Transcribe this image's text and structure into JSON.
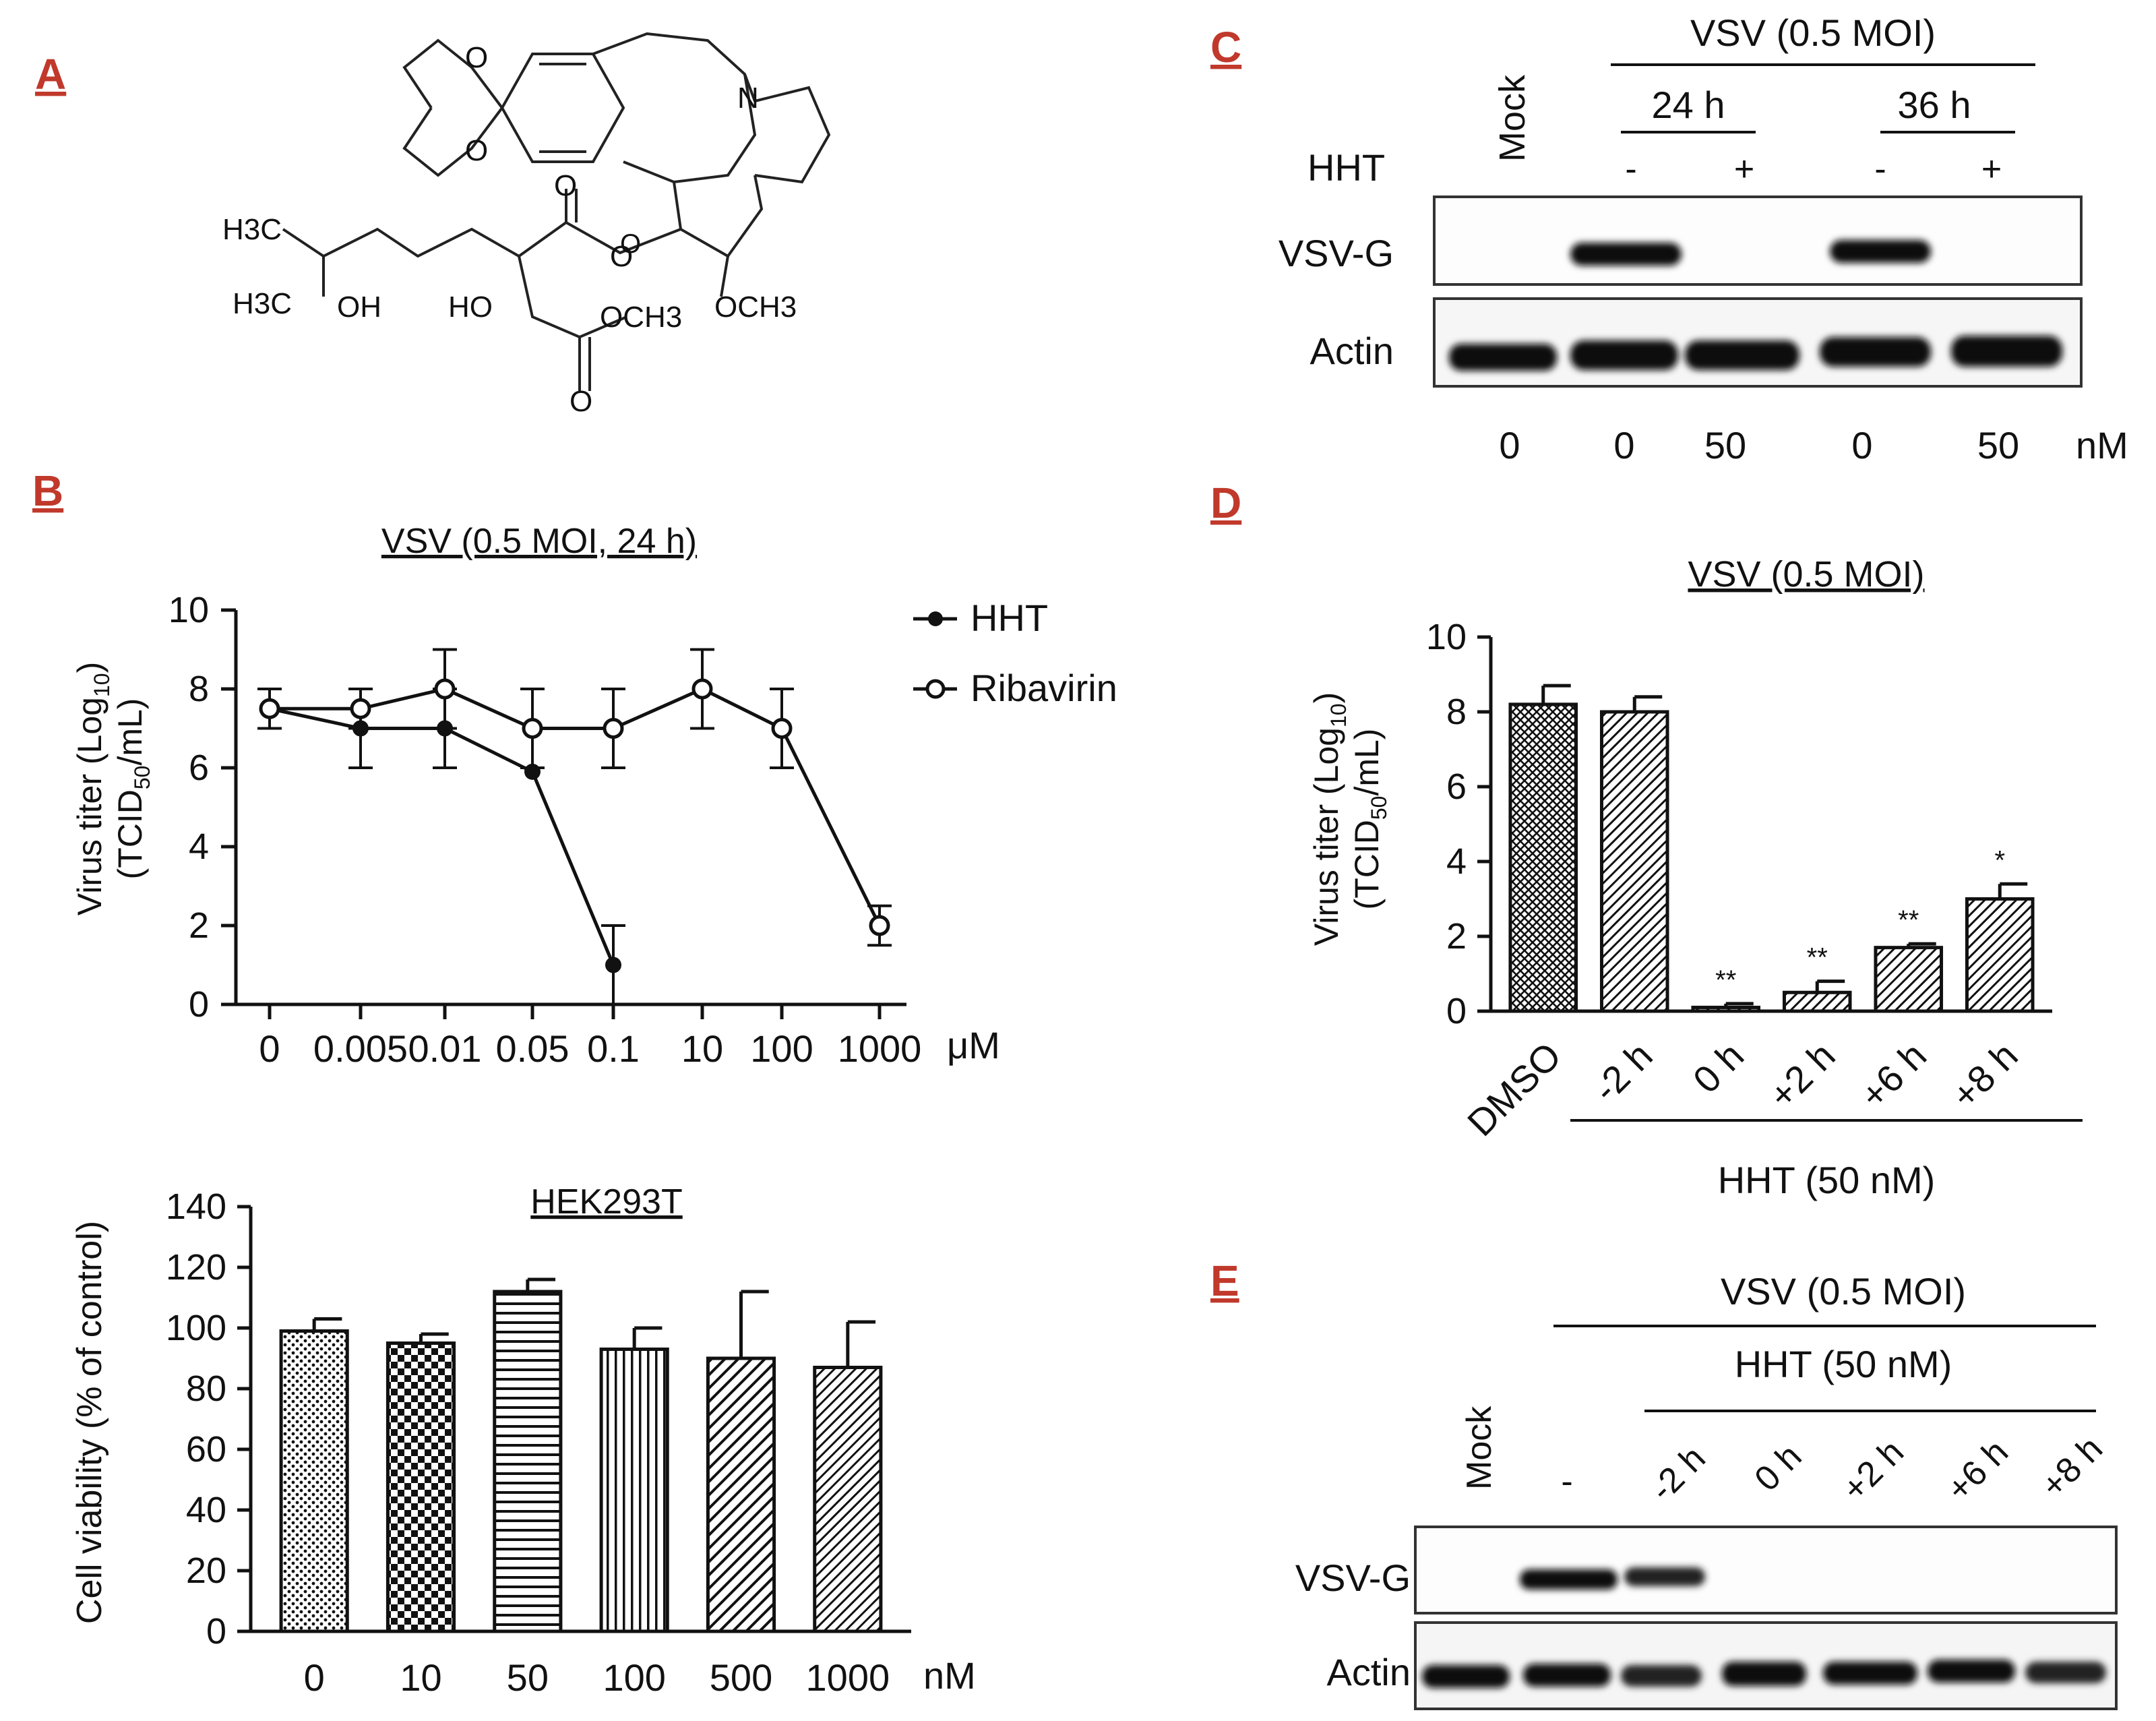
{
  "figure": {
    "panel_labels": [
      "A",
      "B",
      "C",
      "D",
      "E"
    ],
    "structure": {
      "atom_labels": [
        "O",
        "O",
        "N",
        "O",
        "O",
        "O",
        "H3C",
        "H3C",
        "OH",
        "HO",
        "OCH3",
        "OCH3",
        "O"
      ]
    },
    "western_blot_c": {
      "header": "VSV (0.5 MOI)",
      "group_24": "24 h",
      "group_36": "36 h",
      "mock_label": "Mock",
      "hht_label": "HHT",
      "hht_signs": [
        "-",
        "+",
        "-",
        "+"
      ],
      "row_labels": [
        "VSV-G",
        "Actin"
      ],
      "conc_values": [
        "0",
        "0",
        "50",
        "0",
        "50"
      ],
      "conc_unit": "nM"
    },
    "western_blot_e": {
      "header": "VSV (0.5 MOI)",
      "subheader": "HHT (50 nM)",
      "lane_labels": [
        "Mock",
        "-",
        "-2 h",
        "0 h",
        "+2 h",
        "+6 h",
        "+8 h"
      ],
      "row_labels": [
        "VSV-G",
        "Actin"
      ]
    }
  },
  "chart_data": [
    {
      "id": "B-top",
      "type": "line",
      "title": "VSV (0.5 MOI,  24 h)",
      "ylabel_line1": "Virus titer (Log",
      "ylabel_sub1": "10",
      "ylabel_close1": ")",
      "ylabel_line2": "(TCID",
      "ylabel_sub2": "50",
      "ylabel_close2": "/mL)",
      "xlabel_unit": "μM",
      "categories": [
        "0",
        "0.005",
        "0.01",
        "0.05",
        "0.1",
        "10",
        "100",
        "1000"
      ],
      "ylim": [
        0,
        10
      ],
      "yticks": [
        "0",
        "2",
        "4",
        "6",
        "8",
        "10"
      ],
      "series": [
        {
          "name": "HHT",
          "x": [
            "0",
            "0.005",
            "0.01",
            "0.05",
            "0.1"
          ],
          "values": [
            7.5,
            7.0,
            7.0,
            5.9,
            1.0
          ],
          "err": [
            0.5,
            1.0,
            1.0,
            0,
            1.0
          ]
        },
        {
          "name": "Ribavirin",
          "x": [
            "0",
            "0.005",
            "0.01",
            "0.05",
            "0.1",
            "10",
            "100",
            "1000"
          ],
          "values": [
            7.5,
            7.5,
            8.0,
            7.0,
            7.0,
            8.0,
            7.0,
            2.0
          ],
          "err": [
            0.5,
            0.5,
            1.0,
            1.0,
            1.0,
            1.0,
            1.0,
            0.5
          ]
        }
      ]
    },
    {
      "id": "B-bottom",
      "type": "bar",
      "title": "HEK293T",
      "ylabel": "Cell viability (% of control)",
      "xlabel_unit": "nM",
      "categories": [
        "0",
        "10",
        "50",
        "100",
        "500",
        "1000"
      ],
      "values": [
        99,
        95,
        112,
        93,
        90,
        87
      ],
      "err": [
        4,
        3,
        4,
        7,
        22,
        15
      ],
      "ylim": [
        0,
        140
      ],
      "yticks": [
        "0",
        "20",
        "40",
        "60",
        "80",
        "100",
        "120",
        "140"
      ]
    },
    {
      "id": "D",
      "type": "bar",
      "title": "VSV (0.5 MOI)",
      "ylabel_line1": "Virus titer (Log",
      "ylabel_sub1": "10",
      "ylabel_close1": ")",
      "ylabel_line2": "(TCID",
      "ylabel_sub2": "50",
      "ylabel_close2": "/mL)",
      "categories": [
        "DMSO",
        "-2 h",
        "0 h",
        "+2 h",
        "+6 h",
        "+8 h"
      ],
      "values": [
        8.2,
        8.0,
        0.1,
        0.5,
        1.7,
        3.0
      ],
      "err": [
        0.5,
        0.4,
        0.1,
        0.3,
        0.1,
        0.4
      ],
      "significance": [
        "",
        "",
        "**",
        "**",
        "**",
        "*"
      ],
      "ylim": [
        0,
        10
      ],
      "yticks": [
        "0",
        "2",
        "4",
        "6",
        "8",
        "10"
      ],
      "group_label": "HHT (50 nM)"
    }
  ]
}
